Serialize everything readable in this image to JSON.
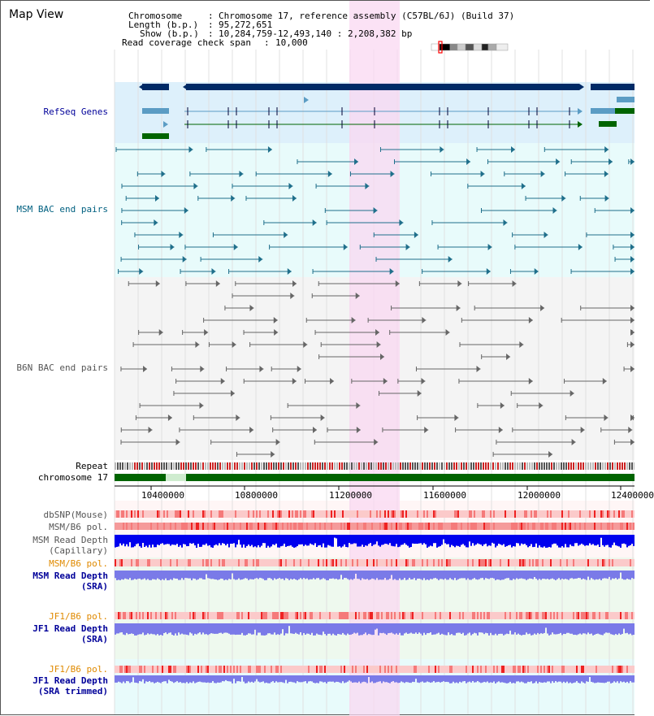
{
  "title": "Map View",
  "info": {
    "chromosome_key": "Chromosome",
    "chromosome_val": "Chromosome 17, reference assembly (C57BL/6J) (Build 37)",
    "length_key": "Length (b.p.)",
    "length_val": "95,272,651",
    "show_key": "Show (b.p.)",
    "show_val": "10,284,759-12,493,140 : 2,208,382 bp",
    "span_key": "Read coverage check span",
    "span_val": "10,000"
  },
  "track_labels": {
    "refseq": "RefSeq Genes",
    "msm_bac": "MSM BAC end pairs",
    "b6n_bac": "B6N BAC end pairs",
    "repeat": "Repeat",
    "chrom": "chromosome 17",
    "dbsnp": "dbSNP(Mouse)",
    "msm_pol": "MSM/B6 pol.",
    "msm_depth_cap_1": "MSM Read Depth",
    "msm_depth_cap_2": "(Capillary)",
    "msm_pol2": "MSM/B6 pol.",
    "msm_sra_1": "MSM Read Depth",
    "msm_sra_2": "(SRA)",
    "jf1_pol": "JF1/B6 pol.",
    "jf1_sra_1": "JF1 Read Depth",
    "jf1_sra_2": "(SRA)",
    "jf1_pol2": "JF1/B6 pol.",
    "jf1_trim_1": "JF1 Read Depth",
    "jf1_trim_2": "(SRA trimmed)"
  },
  "axis_ticks": [
    "10400000",
    "10800000",
    "11200000",
    "11600000",
    "12000000",
    "12400000"
  ],
  "colors": {
    "refseq_bg": "#ddf0fb",
    "msm_bg": "#e8fbfb",
    "b6n_bg": "#f4f4f4",
    "highlight": "#f9d8f2",
    "gene_dark": "#002a66",
    "gene_light": "#5b9cc4",
    "gene_green": "#006400",
    "msm_pair": "#1f6f8b",
    "b6n_pair": "#666666",
    "depth_blue": "#0000ee",
    "depth_light": "#7a7ae8",
    "snp_pink": "#f39a9a"
  }
}
